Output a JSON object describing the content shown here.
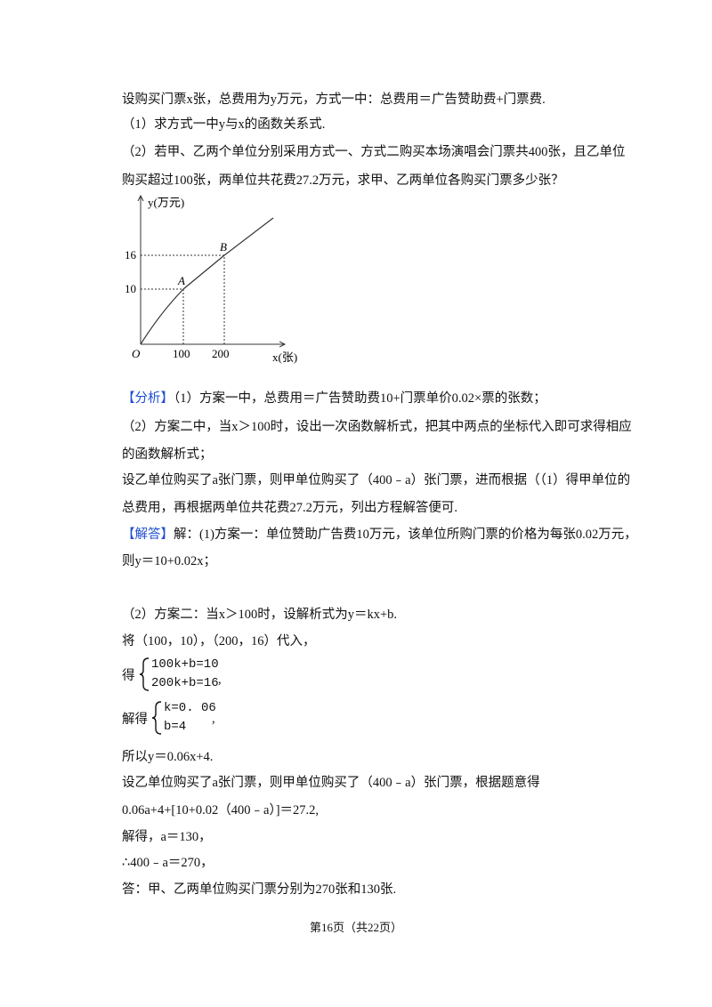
{
  "problem": {
    "lines": [
      "设购买门票x张，总费用为y万元，方式一中：总费用＝广告赞助费+门票费.",
      "（1）求方式一中y与x的函数关系式.",
      "（2）若甲、乙两个单位分别采用方式一、方式二购买本场演唱会门票共400张，且乙单位",
      "购买超过100张，两单位共花费27.2万元，求甲、乙两单位各购买门票多少张？"
    ]
  },
  "figure": {
    "y_axis_label": "y(万元)",
    "x_axis_label": "x(张)",
    "origin_label": "O",
    "yticks": [
      "16",
      "10"
    ],
    "xticks": [
      "100",
      "200"
    ],
    "points": [
      "A",
      "B"
    ]
  },
  "analysis": {
    "tag": "【分析】",
    "first": "（1）方案一中，总费用＝广告赞助费10+门票单价0.02×票的张数；",
    "lines": [
      "（2）方案二中，当x＞100时，设出一次函数解析式，把其中两点的坐标代入即可求得相应",
      "的函数解析式；",
      "设乙单位购买了a张门票，则甲单位购买了（400﹣a）张门票，进而根据（（1）得甲单位的",
      "总费用，再根据两单位共花费27.2万元，列出方程解答便可."
    ]
  },
  "solution": {
    "tag": "【解答】",
    "first": "解：(1)方案一：单位赞助广告费10万元，该单位所购门票的价格为每张0.02万元，",
    "lines_a": [
      "则y＝10+0.02x；",
      "（2）方案二：当x＞100时，设解析式为y＝kx+b.",
      "将（100，10），（200，16）代入，"
    ],
    "system1": {
      "prefix": "得",
      "eq1": "100k+b=10",
      "eq2": "200k+b=16",
      "suffix": ","
    },
    "system2": {
      "prefix": "解得",
      "eq1": "k=0. 06",
      "eq2": "b=4",
      "suffix": ","
    },
    "lines_b": [
      "所以y＝0.06x+4.",
      "设乙单位购买了a张门票，则甲单位购买了（400﹣a）张门票，根据题意得",
      "0.06a+4+[10+0.02（400﹣a）]＝27.2,",
      "解得，a＝130，",
      "∴400﹣a＝270，",
      "答：甲、乙两单位购买门票分别为270张和130张."
    ]
  },
  "footer": "第16页（共22页）"
}
